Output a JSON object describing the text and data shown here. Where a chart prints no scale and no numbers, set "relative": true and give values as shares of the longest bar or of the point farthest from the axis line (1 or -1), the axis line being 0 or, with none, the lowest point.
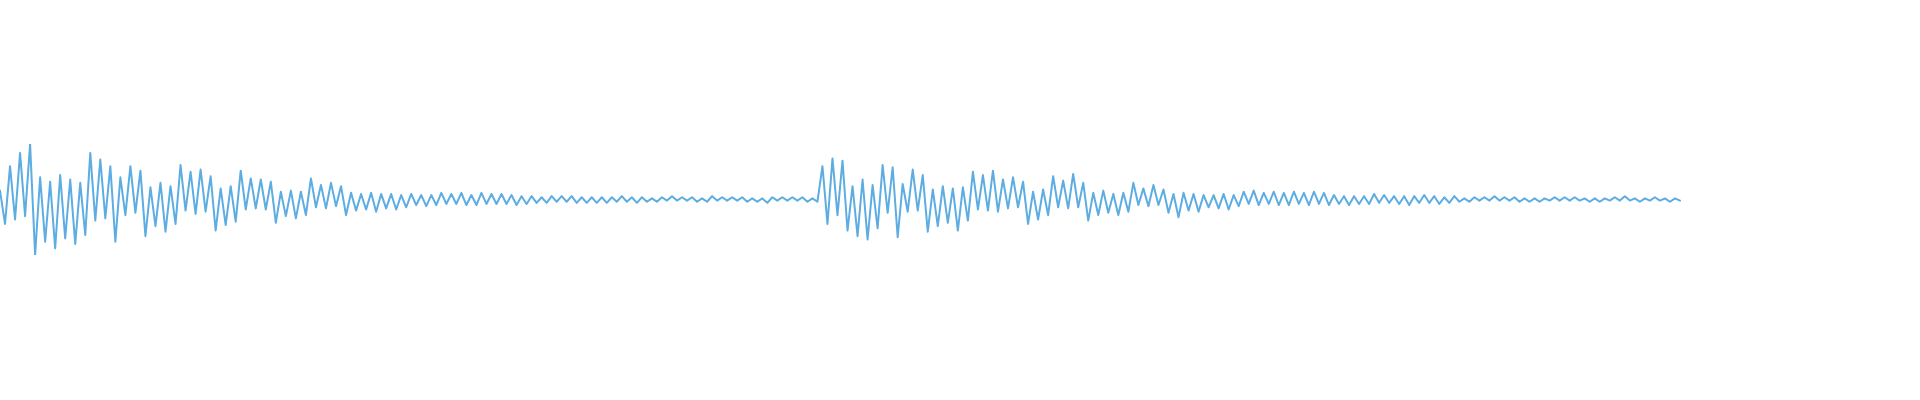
{
  "chart_data": {
    "type": "line",
    "relative": true,
    "tick_labels": false,
    "color": "#5dade2",
    "categories": [
      null,
      null,
      null,
      null,
      null,
      null,
      null,
      null,
      null,
      null,
      null,
      null,
      null,
      null,
      null,
      null,
      null,
      null,
      null,
      null,
      null,
      null,
      null,
      null,
      null,
      null,
      null,
      null,
      null,
      null,
      null,
      null,
      null,
      null,
      null,
      null,
      null,
      null,
      null,
      null,
      null,
      null,
      null,
      null,
      null,
      null,
      null,
      null,
      null,
      null,
      null,
      null,
      null,
      null,
      null,
      null,
      null,
      null,
      null,
      null,
      null,
      null,
      null,
      null,
      null,
      null,
      null,
      null,
      null,
      null,
      null,
      null,
      null,
      null,
      null,
      null,
      null,
      null,
      null,
      null,
      null,
      null,
      null,
      null,
      null,
      null,
      null,
      null,
      null,
      null,
      null,
      null,
      null,
      null,
      null,
      null,
      null,
      null,
      null,
      null,
      null,
      null,
      null,
      null,
      null,
      null,
      null,
      null,
      null,
      null,
      null,
      null,
      null,
      null,
      null,
      null,
      null,
      null,
      null,
      null,
      null,
      null,
      null,
      null,
      null,
      null,
      null,
      null,
      null,
      null,
      null,
      null,
      null,
      null,
      null,
      null,
      null,
      null,
      null,
      null,
      null,
      null,
      null,
      null,
      null,
      null,
      null,
      null,
      null,
      null,
      null,
      null,
      null,
      null,
      null,
      null,
      null,
      null,
      null,
      null,
      null,
      null,
      null,
      null,
      null,
      null,
      null,
      null,
      null,
      null,
      null,
      null,
      null,
      null,
      null,
      null,
      null,
      null,
      null,
      null,
      null,
      null,
      null,
      null,
      null,
      null,
      null,
      null,
      null,
      null,
      null,
      null,
      null,
      null,
      null,
      null,
      null,
      null,
      null,
      null,
      null,
      null,
      null,
      null,
      null,
      null,
      null,
      null,
      null,
      null,
      null,
      null,
      null,
      null,
      null,
      null,
      null,
      null,
      null,
      null,
      null,
      null,
      null,
      null,
      null,
      null,
      null,
      null,
      null,
      null,
      null,
      null,
      null,
      null,
      null,
      null,
      null,
      null,
      null,
      null,
      null,
      null,
      null,
      null,
      null,
      null,
      null,
      null,
      null,
      null,
      null,
      null,
      null,
      null,
      null,
      null,
      null,
      null,
      null,
      null,
      null,
      null,
      null,
      null,
      null,
      null,
      null,
      null,
      null,
      null,
      null,
      null,
      null,
      null,
      null,
      null,
      null,
      null,
      null,
      null,
      null,
      null,
      null,
      null,
      null,
      null,
      null,
      null,
      null,
      null,
      null,
      null,
      null,
      null,
      null,
      null,
      null,
      null,
      null,
      null,
      null,
      null,
      null,
      null,
      null,
      null,
      null,
      null,
      null,
      null,
      null,
      null,
      null,
      null,
      null,
      null,
      null,
      null,
      null,
      null,
      null,
      null,
      null,
      null,
      null,
      null,
      null,
      null,
      null,
      null,
      null,
      null,
      null,
      null,
      null,
      null
    ],
    "values": [
      0.58,
      0.28,
      0.8,
      0.32,
      0.92,
      0.35,
      1,
      0,
      0.7,
      0.12,
      0.66,
      0.06,
      0.72,
      0.15,
      0.68,
      0.1,
      0.65,
      0.18,
      0.92,
      0.31,
      0.86,
      0.33,
      0.8,
      0.12,
      0.7,
      0.36,
      0.8,
      0.38,
      0.76,
      0.17,
      0.61,
      0.26,
      0.65,
      0.21,
      0.62,
      0.28,
      0.81,
      0.4,
      0.75,
      0.37,
      0.77,
      0.39,
      0.71,
      0.22,
      0.6,
      0.27,
      0.62,
      0.3,
      0.76,
      0.41,
      0.69,
      0.42,
      0.68,
      0.41,
      0.66,
      0.29,
      0.57,
      0.35,
      0.58,
      0.33,
      0.57,
      0.36,
      0.69,
      0.43,
      0.63,
      0.42,
      0.65,
      0.44,
      0.62,
      0.36,
      0.56,
      0.4,
      0.55,
      0.41,
      0.56,
      0.39,
      0.55,
      0.42,
      0.55,
      0.41,
      0.54,
      0.43,
      0.55,
      0.45,
      0.54,
      0.44,
      0.54,
      0.45,
      0.56,
      0.46,
      0.55,
      0.46,
      0.56,
      0.45,
      0.54,
      0.45,
      0.56,
      0.46,
      0.55,
      0.46,
      0.55,
      0.46,
      0.54,
      0.45,
      0.53,
      0.46,
      0.53,
      0.47,
      0.52,
      0.47,
      0.53,
      0.48,
      0.53,
      0.48,
      0.53,
      0.47,
      0.52,
      0.47,
      0.52,
      0.47,
      0.52,
      0.47,
      0.52,
      0.48,
      0.53,
      0.48,
      0.52,
      0.47,
      0.52,
      0.48,
      0.51,
      0.48,
      0.52,
      0.49,
      0.53,
      0.49,
      0.52,
      0.49,
      0.52,
      0.48,
      0.51,
      0.48,
      0.53,
      0.49,
      0.52,
      0.49,
      0.52,
      0.49,
      0.52,
      0.48,
      0.51,
      0.48,
      0.51,
      0.47,
      0.52,
      0.49,
      0.52,
      0.49,
      0.52,
      0.49,
      0.52,
      0.48,
      0.51,
      0.48,
      0.8,
      0.28,
      0.87,
      0.36,
      0.85,
      0.22,
      0.62,
      0.17,
      0.68,
      0.14,
      0.63,
      0.24,
      0.81,
      0.38,
      0.79,
      0.16,
      0.64,
      0.39,
      0.77,
      0.4,
      0.72,
      0.21,
      0.59,
      0.26,
      0.62,
      0.29,
      0.6,
      0.22,
      0.61,
      0.31,
      0.75,
      0.41,
      0.72,
      0.4,
      0.76,
      0.39,
      0.68,
      0.42,
      0.7,
      0.43,
      0.66,
      0.28,
      0.57,
      0.32,
      0.59,
      0.36,
      0.71,
      0.43,
      0.67,
      0.42,
      0.73,
      0.43,
      0.65,
      0.31,
      0.56,
      0.36,
      0.58,
      0.38,
      0.55,
      0.36,
      0.56,
      0.39,
      0.65,
      0.45,
      0.6,
      0.44,
      0.63,
      0.45,
      0.59,
      0.38,
      0.55,
      0.34,
      0.56,
      0.4,
      0.55,
      0.39,
      0.54,
      0.43,
      0.54,
      0.42,
      0.55,
      0.41,
      0.54,
      0.44,
      0.57,
      0.46,
      0.58,
      0.45,
      0.56,
      0.46,
      0.57,
      0.45,
      0.56,
      0.45,
      0.57,
      0.46,
      0.56,
      0.45,
      0.57,
      0.46,
      0.56,
      0.45,
      0.54,
      0.46,
      0.53,
      0.45,
      0.53,
      0.46,
      0.53,
      0.46,
      0.55,
      0.47,
      0.54,
      0.47,
      0.53,
      0.46,
      0.53,
      0.45,
      0.53,
      0.47,
      0.54,
      0.47,
      0.53,
      0.46,
      0.52,
      0.47,
      0.53,
      0.48,
      0.51,
      0.48,
      0.52,
      0.49,
      0.52,
      0.49,
      0.53,
      0.49,
      0.52,
      0.49,
      0.52,
      0.48,
      0.51,
      0.48,
      0.51,
      0.48,
      0.51,
      0.49,
      0.52,
      0.49,
      0.52,
      0.49,
      0.52,
      0.49,
      0.51,
      0.48,
      0.51,
      0.48,
      0.51,
      0.49,
      0.52,
      0.49,
      0.53,
      0.49,
      0.51,
      0.48,
      0.51,
      0.49,
      0.52,
      0.49,
      0.51,
      0.48,
      0.51,
      0.49
    ]
  }
}
